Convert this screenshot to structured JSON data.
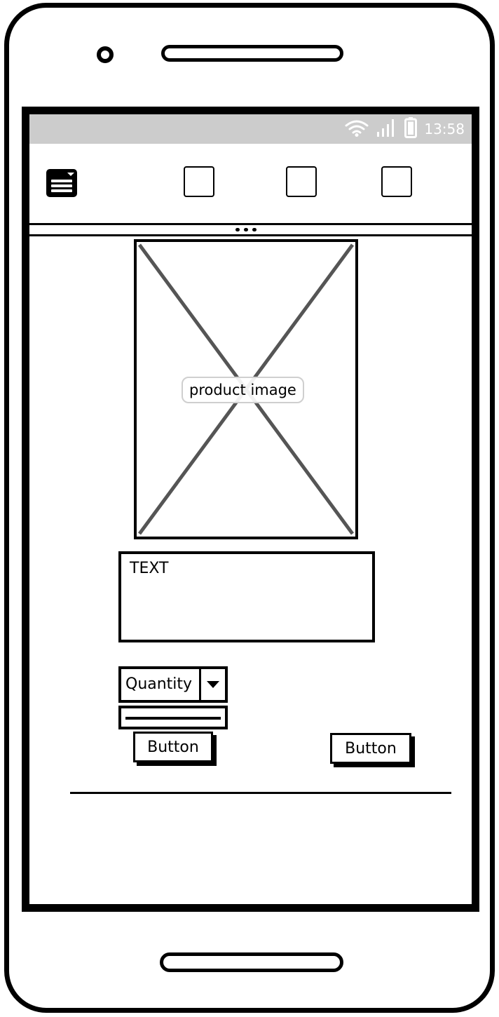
{
  "status_bar": {
    "time": "13:58"
  },
  "app_bar": {
    "menu_icon": "menu-window-icon",
    "tabs": [
      {
        "label": ""
      },
      {
        "label": ""
      },
      {
        "label": ""
      }
    ]
  },
  "product": {
    "image_label": "product image",
    "text": "TEXT"
  },
  "quantity": {
    "label": "Quantity"
  },
  "buttons": {
    "left_label": "Button",
    "right_label": "Button"
  },
  "colors": {
    "status_bar_bg": "#cccccc",
    "ink": "#000000",
    "placeholder_cross": "#555555"
  }
}
